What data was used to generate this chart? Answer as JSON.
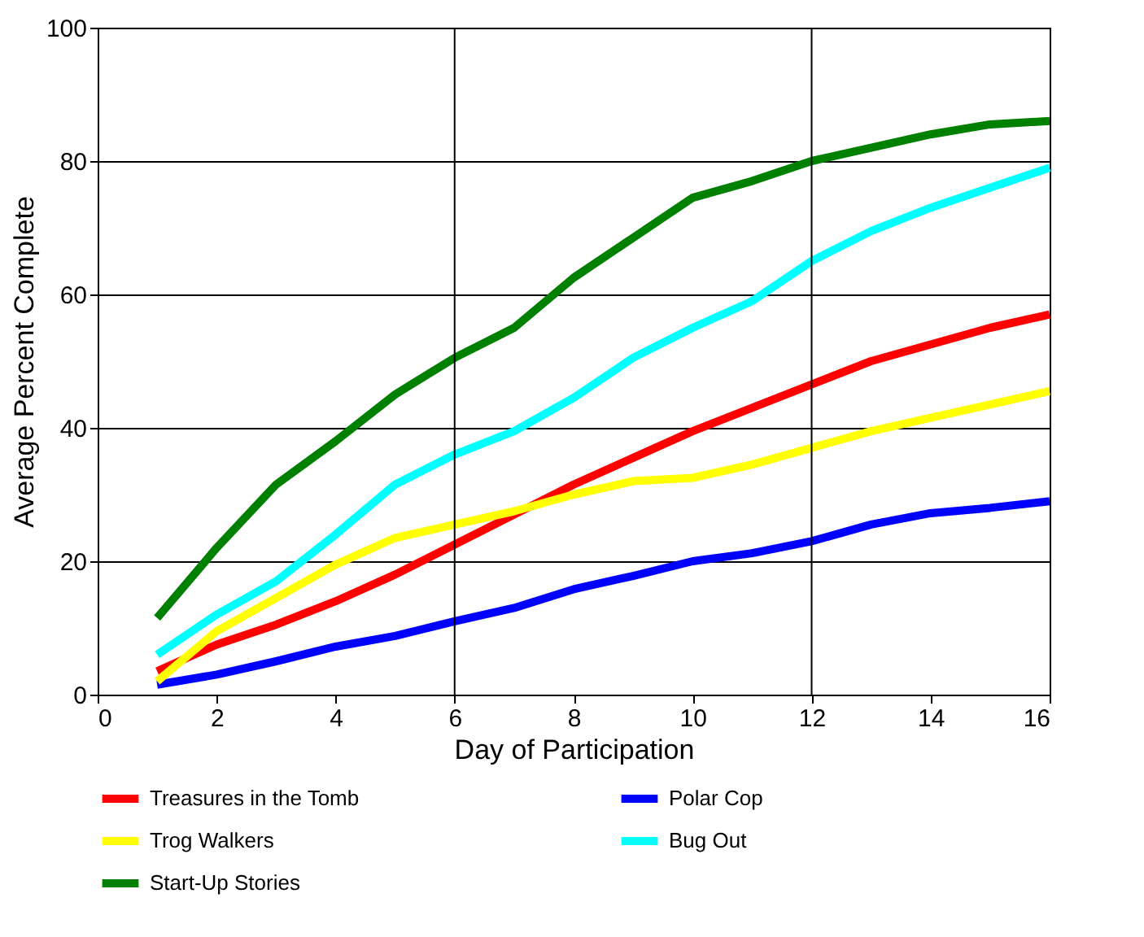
{
  "chart_data": {
    "type": "line",
    "xlabel": "Day of Participation",
    "ylabel": "Average Percent Complete",
    "x": [
      1,
      2,
      3,
      4,
      5,
      6,
      7,
      8,
      9,
      10,
      11,
      12,
      13,
      14,
      15,
      16
    ],
    "series": [
      {
        "name": "Treasures in the Tomb",
        "color": "#ff0000",
        "values": [
          3.5,
          7.5,
          10.5,
          14,
          18,
          22.5,
          27,
          31.5,
          35.5,
          39.5,
          43,
          46.5,
          50,
          52.5,
          55,
          57
        ]
      },
      {
        "name": "Polar Cop",
        "color": "#0000ff",
        "values": [
          1.5,
          3,
          5,
          7.2,
          8.8,
          11,
          13,
          15.8,
          17.8,
          20,
          21.2,
          23,
          25.5,
          27.2,
          28,
          29
        ]
      },
      {
        "name": "Trog Walkers",
        "color": "#ffff00",
        "values": [
          2,
          9.5,
          14.5,
          19.5,
          23.5,
          25.5,
          27.5,
          30,
          32,
          32.5,
          34.5,
          37,
          39.5,
          41.5,
          43.5,
          45.5
        ]
      },
      {
        "name": "Bug Out",
        "color": "#00ffff",
        "values": [
          6,
          12,
          17,
          24,
          31.5,
          36,
          39.5,
          44.5,
          50.5,
          55,
          59,
          65,
          69.5,
          73,
          76,
          79
        ]
      },
      {
        "name": "Start-Up Stories",
        "color": "#008000",
        "values": [
          11.5,
          22,
          31.5,
          38,
          45,
          50.5,
          55,
          62.5,
          68.5,
          74.5,
          77,
          80,
          82,
          84,
          85.5,
          86
        ]
      }
    ],
    "xlim": [
      0,
      16
    ],
    "xticks": [
      0,
      2,
      4,
      6,
      8,
      10,
      12,
      14,
      16
    ],
    "ylim": [
      0,
      100
    ],
    "yticks": [
      0,
      20,
      40,
      60,
      80,
      100
    ],
    "grid": "y",
    "ref_lines": [
      {
        "axis": "x",
        "value": 6,
        "color": "#000000"
      },
      {
        "axis": "x",
        "value": 12,
        "color": "#000000"
      }
    ],
    "legend": "bottom",
    "marker": "none",
    "line_style": "solid"
  }
}
